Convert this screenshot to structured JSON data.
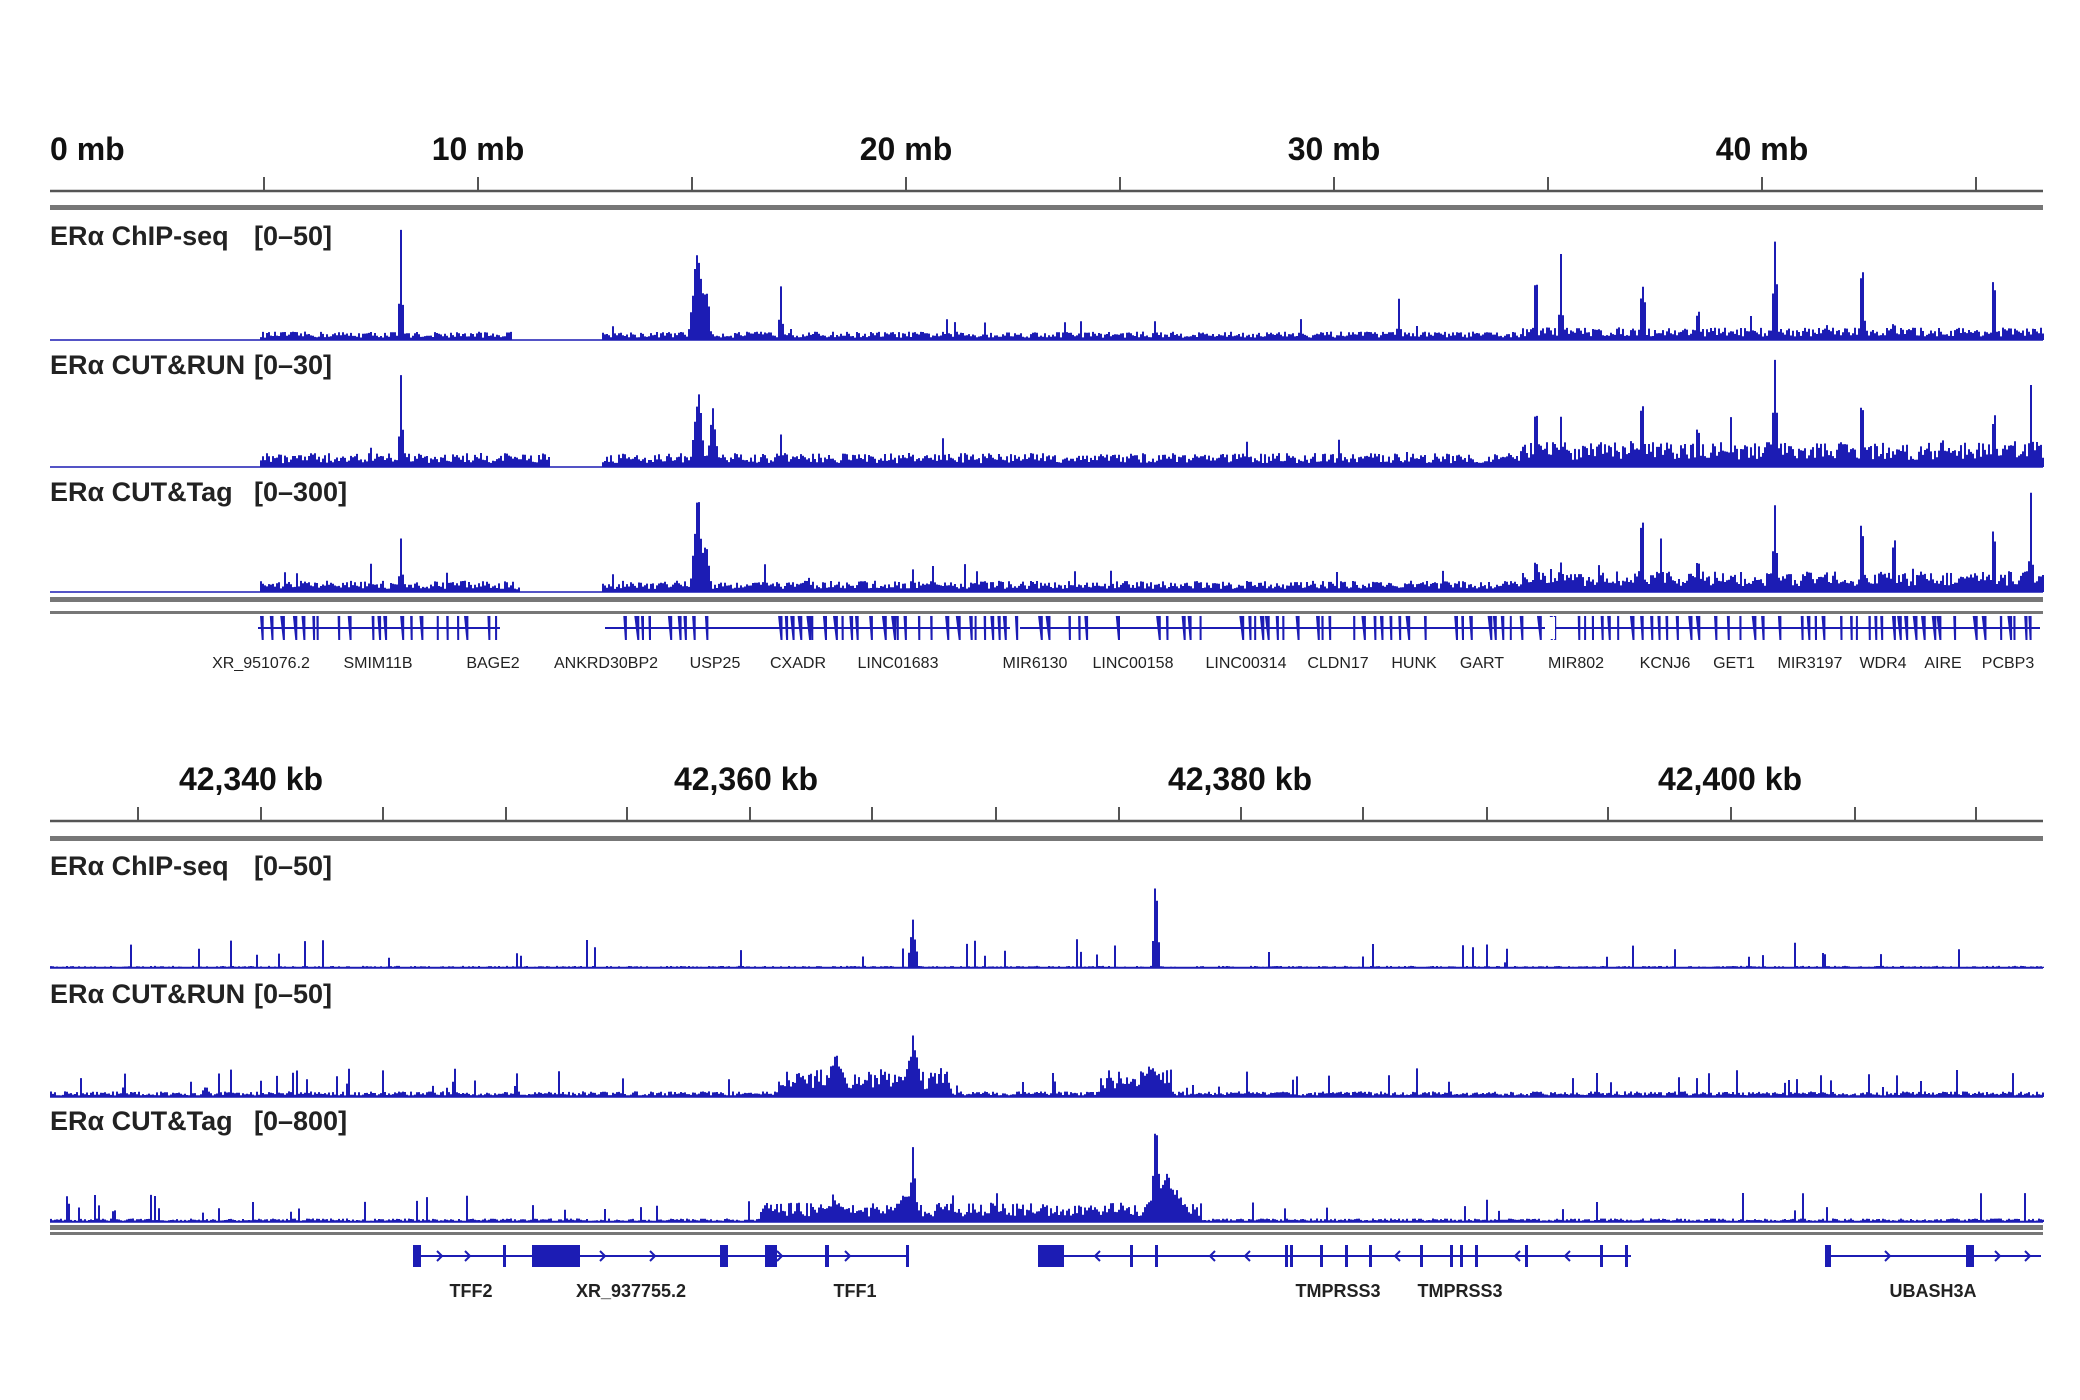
{
  "colors": {
    "signal": "#1c1cb4",
    "axis": "#555555",
    "separator": "#777777"
  },
  "panels": [
    {
      "id": "chromosome-view",
      "scale_labels": [
        "0 mb",
        "10 mb",
        "20 mb",
        "30 mb",
        "40 mb"
      ],
      "tracks": [
        {
          "name": "ERα ChIP-seq",
          "range": "[0–50]"
        },
        {
          "name": "ERα CUT&RUN",
          "range": "[0–30]"
        },
        {
          "name": "ERα CUT&Tag",
          "range": "[0–300]"
        }
      ],
      "genes": [
        "XR_951076.2",
        "SMIM11B",
        "BAGE2",
        "ANKRD30BP2",
        "USP25",
        "CXADR",
        "LINC01683",
        "MIR6130",
        "LINC00158",
        "LINC00314",
        "CLDN17",
        "HUNK",
        "GART",
        "MIR802",
        "KCNJ6",
        "GET1",
        "MIR3197",
        "WDR4",
        "AIRE",
        "PCBP3"
      ]
    },
    {
      "id": "locus-view",
      "scale_labels": [
        "42,340 kb",
        "42,360 kb",
        "42,380 kb",
        "42,400 kb"
      ],
      "tracks": [
        {
          "name": "ERα ChIP-seq",
          "range": "[0–50]"
        },
        {
          "name": "ERα CUT&RUN",
          "range": "[0–50]"
        },
        {
          "name": "ERα CUT&Tag",
          "range": "[0–800]"
        }
      ],
      "genes": [
        "TFF2",
        "XR_937755.2",
        "TFF1",
        "TMPRSS3",
        "TMPRSS3",
        "UBASH3A"
      ]
    }
  ]
}
